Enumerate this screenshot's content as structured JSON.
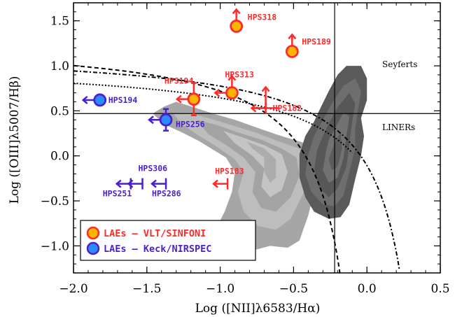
{
  "chart_data": {
    "type": "scatter",
    "xlabel": "Log ([NII]λ6583/Hα)",
    "ylabel": "Log ([OIII]λ5007/Hβ)",
    "xlim": [
      -2.0,
      0.5
    ],
    "ylim": [
      -1.3,
      1.7
    ],
    "xticks": [
      "−2.0",
      "−1.5",
      "−1.0",
      "−0.5",
      "0.0",
      "0.5"
    ],
    "yticks": [
      "−1.0",
      "−0.5",
      "0.0",
      "0.5",
      "1.0",
      "1.5"
    ],
    "regions": [
      "Seyferts",
      "LINERs"
    ],
    "colors": {
      "vlt": "#ff2a2a",
      "vlt_fill": "#ffb400",
      "keck": "#4b1fd0",
      "keck_fill": "#2a8cff",
      "hist_light": "#a8a8a8",
      "hist_dark": "#555555"
    },
    "series": [
      {
        "name": "LAEs – VLT/SINFONI",
        "points": [
          {
            "label": "HPS318",
            "x": -0.89,
            "y": 1.44,
            "kind": "lower_y"
          },
          {
            "label": "HPS189",
            "x": -0.51,
            "y": 1.16,
            "kind": "lower_y"
          },
          {
            "label": "HPS313",
            "x": -0.92,
            "y": 0.7,
            "kind": "lower_y_upper_x"
          },
          {
            "label": "HPS194",
            "x": -1.18,
            "y": 0.63,
            "kind": "upper_x",
            "yerr": 0.18
          },
          {
            "label": "HPS182",
            "x": -0.69,
            "y": 0.53,
            "kind": "upper_x_lower_y"
          },
          {
            "label": "HPS183",
            "x": -0.95,
            "y": -0.31,
            "kind": "upper_x"
          }
        ]
      },
      {
        "name": "LAEs – Keck/NIRSPEC",
        "points": [
          {
            "label": "HPS194",
            "x": -1.82,
            "y": 0.62,
            "kind": "upper_x"
          },
          {
            "label": "HPS256",
            "x": -1.37,
            "y": 0.4,
            "kind": "upper_x",
            "yerr": 0.12
          },
          {
            "label": "HPS251",
            "x": -1.61,
            "y": -0.31,
            "kind": "upper_x"
          },
          {
            "label": "HPS306",
            "x": -1.53,
            "y": -0.31,
            "kind": "upper_x"
          },
          {
            "label": "HPS286",
            "x": -1.37,
            "y": -0.31,
            "kind": "upper_x"
          }
        ]
      }
    ],
    "legend": {
      "position": "bottom-left",
      "items": [
        "LAEs – VLT/SINFONI",
        "LAEs – Keck/NIRSPEC"
      ]
    },
    "reference_lines": {
      "vertical_x": -0.22,
      "horizontal_y": 0.47
    }
  }
}
